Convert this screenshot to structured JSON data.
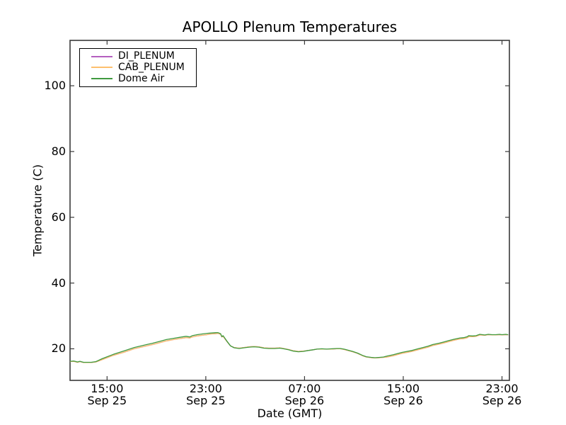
{
  "chart_data": {
    "type": "line",
    "title": "APOLLO Plenum Temperatures",
    "xlabel": "Date (GMT)",
    "ylabel": "Temperature (C)",
    "grid": false,
    "legend_position": "upper left",
    "x_unit": "hours since Sep 25 00:00 GMT",
    "xlim": [
      12.0,
      47.6
    ],
    "ylim": [
      10.4,
      113.8
    ],
    "y_ticks": [
      20,
      40,
      60,
      80,
      100
    ],
    "x_ticks": [
      {
        "value": 15,
        "time": "15:00",
        "date": "Sep 25"
      },
      {
        "value": 23,
        "time": "23:00",
        "date": "Sep 25"
      },
      {
        "value": 31,
        "time": "07:00",
        "date": "Sep 26"
      },
      {
        "value": 39,
        "time": "15:00",
        "date": "Sep 26"
      },
      {
        "value": 47,
        "time": "23:00",
        "date": "Sep 26"
      }
    ],
    "axis_color": "#3a3a3a",
    "series": [
      {
        "name": "DI_PLENUM",
        "color": "#b45fbf",
        "points": [
          [
            12.0,
            16.1
          ],
          [
            12.3,
            16.2
          ],
          [
            12.6,
            15.9
          ],
          [
            12.8,
            16.1
          ],
          [
            13.1,
            15.8
          ],
          [
            13.7,
            15.8
          ],
          [
            14.1,
            16.0
          ],
          [
            14.6,
            16.7
          ],
          [
            15.5,
            18.0
          ],
          [
            16.4,
            19.0
          ],
          [
            17.2,
            20.0
          ],
          [
            18.1,
            20.8
          ],
          [
            18.7,
            21.3
          ],
          [
            19.2,
            21.8
          ],
          [
            19.8,
            22.4
          ],
          [
            20.4,
            22.8
          ],
          [
            20.9,
            23.1
          ],
          [
            21.4,
            23.4
          ],
          [
            21.7,
            23.3
          ],
          [
            21.9,
            23.6
          ],
          [
            22.3,
            23.9
          ],
          [
            22.7,
            24.1
          ],
          [
            23.1,
            24.3
          ],
          [
            23.4,
            24.5
          ],
          [
            23.8,
            24.6
          ],
          [
            24.0,
            24.7
          ],
          [
            24.2,
            24.4
          ],
          [
            24.3,
            23.6
          ],
          [
            24.4,
            23.8
          ],
          [
            24.7,
            22.3
          ],
          [
            25.0,
            20.9
          ],
          [
            25.3,
            20.4
          ],
          [
            25.7,
            20.2
          ],
          [
            26.1,
            20.4
          ],
          [
            26.5,
            20.6
          ],
          [
            26.9,
            20.7
          ],
          [
            27.3,
            20.6
          ],
          [
            27.7,
            20.3
          ],
          [
            28.1,
            20.2
          ],
          [
            28.6,
            20.2
          ],
          [
            29.0,
            20.3
          ],
          [
            29.3,
            20.1
          ],
          [
            29.7,
            19.8
          ],
          [
            30.1,
            19.4
          ],
          [
            30.5,
            19.2
          ],
          [
            30.9,
            19.3
          ],
          [
            31.3,
            19.5
          ],
          [
            31.7,
            19.7
          ],
          [
            32.0,
            19.9
          ],
          [
            32.4,
            19.9
          ],
          [
            32.8,
            19.9
          ],
          [
            33.2,
            19.9
          ],
          [
            33.6,
            20.0
          ],
          [
            33.9,
            20.0
          ],
          [
            34.2,
            19.8
          ],
          [
            34.5,
            19.5
          ],
          [
            34.9,
            19.1
          ],
          [
            35.3,
            18.6
          ],
          [
            35.7,
            17.9
          ],
          [
            36.0,
            17.5
          ],
          [
            36.4,
            17.3
          ],
          [
            36.7,
            17.2
          ],
          [
            37.1,
            17.3
          ],
          [
            37.4,
            17.4
          ],
          [
            37.7,
            17.5
          ],
          [
            38.2,
            17.9
          ],
          [
            38.6,
            18.3
          ],
          [
            38.9,
            18.6
          ],
          [
            39.3,
            18.9
          ],
          [
            39.7,
            19.2
          ],
          [
            40.2,
            19.7
          ],
          [
            40.6,
            20.1
          ],
          [
            41.0,
            20.5
          ],
          [
            41.4,
            21.0
          ],
          [
            41.9,
            21.4
          ],
          [
            42.3,
            21.8
          ],
          [
            42.7,
            22.2
          ],
          [
            43.1,
            22.6
          ],
          [
            43.6,
            23.0
          ],
          [
            43.9,
            23.1
          ],
          [
            44.2,
            23.4
          ],
          [
            44.3,
            23.7
          ],
          [
            44.6,
            23.7
          ],
          [
            44.9,
            23.8
          ],
          [
            45.2,
            24.2
          ],
          [
            45.6,
            24.1
          ],
          [
            45.9,
            24.3
          ],
          [
            46.2,
            24.2
          ],
          [
            46.5,
            24.2
          ],
          [
            46.8,
            24.3
          ],
          [
            47.0,
            24.2
          ],
          [
            47.3,
            24.3
          ],
          [
            47.5,
            24.2
          ]
        ]
      },
      {
        "name": "CAB_PLENUM",
        "color": "#fdc06e",
        "points": [
          [
            12.0,
            16.1
          ],
          [
            12.3,
            16.2
          ],
          [
            12.6,
            15.9
          ],
          [
            12.8,
            16.1
          ],
          [
            13.1,
            15.8
          ],
          [
            13.7,
            15.8
          ],
          [
            14.1,
            16.0
          ],
          [
            14.6,
            16.7
          ],
          [
            15.5,
            18.0
          ],
          [
            16.4,
            19.0
          ],
          [
            17.2,
            20.0
          ],
          [
            18.1,
            20.8
          ],
          [
            18.7,
            21.3
          ],
          [
            19.2,
            21.8
          ],
          [
            19.8,
            22.4
          ],
          [
            20.4,
            22.8
          ],
          [
            20.9,
            23.1
          ],
          [
            21.4,
            23.4
          ],
          [
            21.7,
            23.3
          ],
          [
            21.9,
            23.6
          ],
          [
            22.3,
            23.9
          ],
          [
            22.7,
            24.1
          ],
          [
            23.1,
            24.3
          ],
          [
            23.4,
            24.5
          ],
          [
            23.8,
            24.6
          ],
          [
            24.0,
            24.7
          ],
          [
            24.2,
            24.4
          ],
          [
            24.3,
            23.6
          ],
          [
            24.4,
            23.8
          ],
          [
            24.7,
            22.3
          ],
          [
            25.0,
            20.9
          ],
          [
            25.3,
            20.4
          ],
          [
            25.7,
            20.2
          ],
          [
            26.1,
            20.4
          ],
          [
            26.5,
            20.6
          ],
          [
            26.9,
            20.7
          ],
          [
            27.3,
            20.6
          ],
          [
            27.7,
            20.3
          ],
          [
            28.1,
            20.2
          ],
          [
            28.6,
            20.2
          ],
          [
            29.0,
            20.3
          ],
          [
            29.3,
            20.1
          ],
          [
            29.7,
            19.8
          ],
          [
            30.1,
            19.4
          ],
          [
            30.5,
            19.2
          ],
          [
            30.9,
            19.3
          ],
          [
            31.3,
            19.5
          ],
          [
            31.7,
            19.7
          ],
          [
            32.0,
            19.9
          ],
          [
            32.4,
            19.9
          ],
          [
            32.8,
            19.9
          ],
          [
            33.2,
            19.9
          ],
          [
            33.6,
            20.0
          ],
          [
            33.9,
            20.0
          ],
          [
            34.2,
            19.8
          ],
          [
            34.5,
            19.5
          ],
          [
            34.9,
            19.1
          ],
          [
            35.3,
            18.6
          ],
          [
            35.7,
            17.9
          ],
          [
            36.0,
            17.5
          ],
          [
            36.4,
            17.3
          ],
          [
            36.7,
            17.2
          ],
          [
            37.1,
            17.3
          ],
          [
            37.4,
            17.4
          ],
          [
            37.7,
            17.5
          ],
          [
            38.2,
            17.9
          ],
          [
            38.6,
            18.3
          ],
          [
            38.9,
            18.6
          ],
          [
            39.3,
            18.9
          ],
          [
            39.7,
            19.2
          ],
          [
            40.2,
            19.7
          ],
          [
            40.6,
            20.1
          ],
          [
            41.0,
            20.5
          ],
          [
            41.4,
            21.0
          ],
          [
            41.9,
            21.4
          ],
          [
            42.3,
            21.8
          ],
          [
            42.7,
            22.2
          ],
          [
            43.1,
            22.6
          ],
          [
            43.6,
            23.0
          ],
          [
            43.9,
            23.1
          ],
          [
            44.2,
            23.4
          ],
          [
            44.3,
            23.7
          ],
          [
            44.6,
            23.7
          ],
          [
            44.9,
            23.8
          ],
          [
            45.2,
            24.2
          ],
          [
            45.6,
            24.1
          ],
          [
            45.9,
            24.3
          ],
          [
            46.2,
            24.2
          ],
          [
            46.5,
            24.2
          ],
          [
            46.8,
            24.3
          ],
          [
            47.0,
            24.2
          ],
          [
            47.3,
            24.3
          ],
          [
            47.5,
            24.2
          ]
        ]
      },
      {
        "name": "Dome Air",
        "color": "#3f9a3f",
        "points": [
          [
            12.0,
            16.2
          ],
          [
            12.3,
            16.3
          ],
          [
            12.6,
            16.0
          ],
          [
            12.8,
            16.2
          ],
          [
            13.1,
            15.9
          ],
          [
            13.7,
            15.9
          ],
          [
            14.1,
            16.1
          ],
          [
            14.6,
            17.0
          ],
          [
            15.5,
            18.3
          ],
          [
            16.4,
            19.4
          ],
          [
            17.2,
            20.4
          ],
          [
            18.1,
            21.2
          ],
          [
            18.7,
            21.7
          ],
          [
            19.2,
            22.2
          ],
          [
            19.8,
            22.8
          ],
          [
            20.4,
            23.2
          ],
          [
            20.9,
            23.5
          ],
          [
            21.4,
            23.8
          ],
          [
            21.7,
            23.6
          ],
          [
            21.9,
            24.0
          ],
          [
            22.3,
            24.3
          ],
          [
            22.7,
            24.5
          ],
          [
            23.1,
            24.7
          ],
          [
            23.4,
            24.8
          ],
          [
            23.8,
            24.9
          ],
          [
            24.0,
            24.9
          ],
          [
            24.2,
            24.6
          ],
          [
            24.3,
            23.7
          ],
          [
            24.4,
            24.0
          ],
          [
            24.7,
            22.4
          ],
          [
            25.0,
            20.9
          ],
          [
            25.3,
            20.3
          ],
          [
            25.7,
            20.1
          ],
          [
            26.1,
            20.3
          ],
          [
            26.5,
            20.5
          ],
          [
            26.9,
            20.6
          ],
          [
            27.3,
            20.5
          ],
          [
            27.7,
            20.2
          ],
          [
            28.1,
            20.1
          ],
          [
            28.6,
            20.1
          ],
          [
            29.0,
            20.2
          ],
          [
            29.3,
            20.0
          ],
          [
            29.7,
            19.7
          ],
          [
            30.1,
            19.3
          ],
          [
            30.5,
            19.1
          ],
          [
            30.9,
            19.2
          ],
          [
            31.3,
            19.5
          ],
          [
            31.7,
            19.7
          ],
          [
            32.0,
            19.9
          ],
          [
            32.4,
            20.0
          ],
          [
            32.8,
            19.9
          ],
          [
            33.2,
            20.0
          ],
          [
            33.6,
            20.1
          ],
          [
            33.9,
            20.1
          ],
          [
            34.2,
            19.9
          ],
          [
            34.5,
            19.6
          ],
          [
            34.9,
            19.2
          ],
          [
            35.3,
            18.7
          ],
          [
            35.7,
            18.0
          ],
          [
            36.0,
            17.6
          ],
          [
            36.4,
            17.4
          ],
          [
            36.7,
            17.3
          ],
          [
            37.1,
            17.4
          ],
          [
            37.4,
            17.5
          ],
          [
            37.7,
            17.8
          ],
          [
            38.2,
            18.2
          ],
          [
            38.6,
            18.6
          ],
          [
            38.9,
            18.9
          ],
          [
            39.3,
            19.2
          ],
          [
            39.7,
            19.5
          ],
          [
            40.2,
            20.0
          ],
          [
            40.6,
            20.4
          ],
          [
            41.0,
            20.8
          ],
          [
            41.4,
            21.3
          ],
          [
            41.9,
            21.7
          ],
          [
            42.3,
            22.1
          ],
          [
            42.7,
            22.5
          ],
          [
            43.1,
            22.9
          ],
          [
            43.6,
            23.3
          ],
          [
            43.9,
            23.4
          ],
          [
            44.2,
            23.7
          ],
          [
            44.3,
            24.0
          ],
          [
            44.6,
            23.9
          ],
          [
            44.9,
            24.0
          ],
          [
            45.2,
            24.4
          ],
          [
            45.6,
            24.2
          ],
          [
            45.9,
            24.4
          ],
          [
            46.2,
            24.3
          ],
          [
            46.5,
            24.3
          ],
          [
            46.8,
            24.4
          ],
          [
            47.0,
            24.3
          ],
          [
            47.3,
            24.4
          ],
          [
            47.5,
            24.3
          ]
        ]
      }
    ]
  }
}
